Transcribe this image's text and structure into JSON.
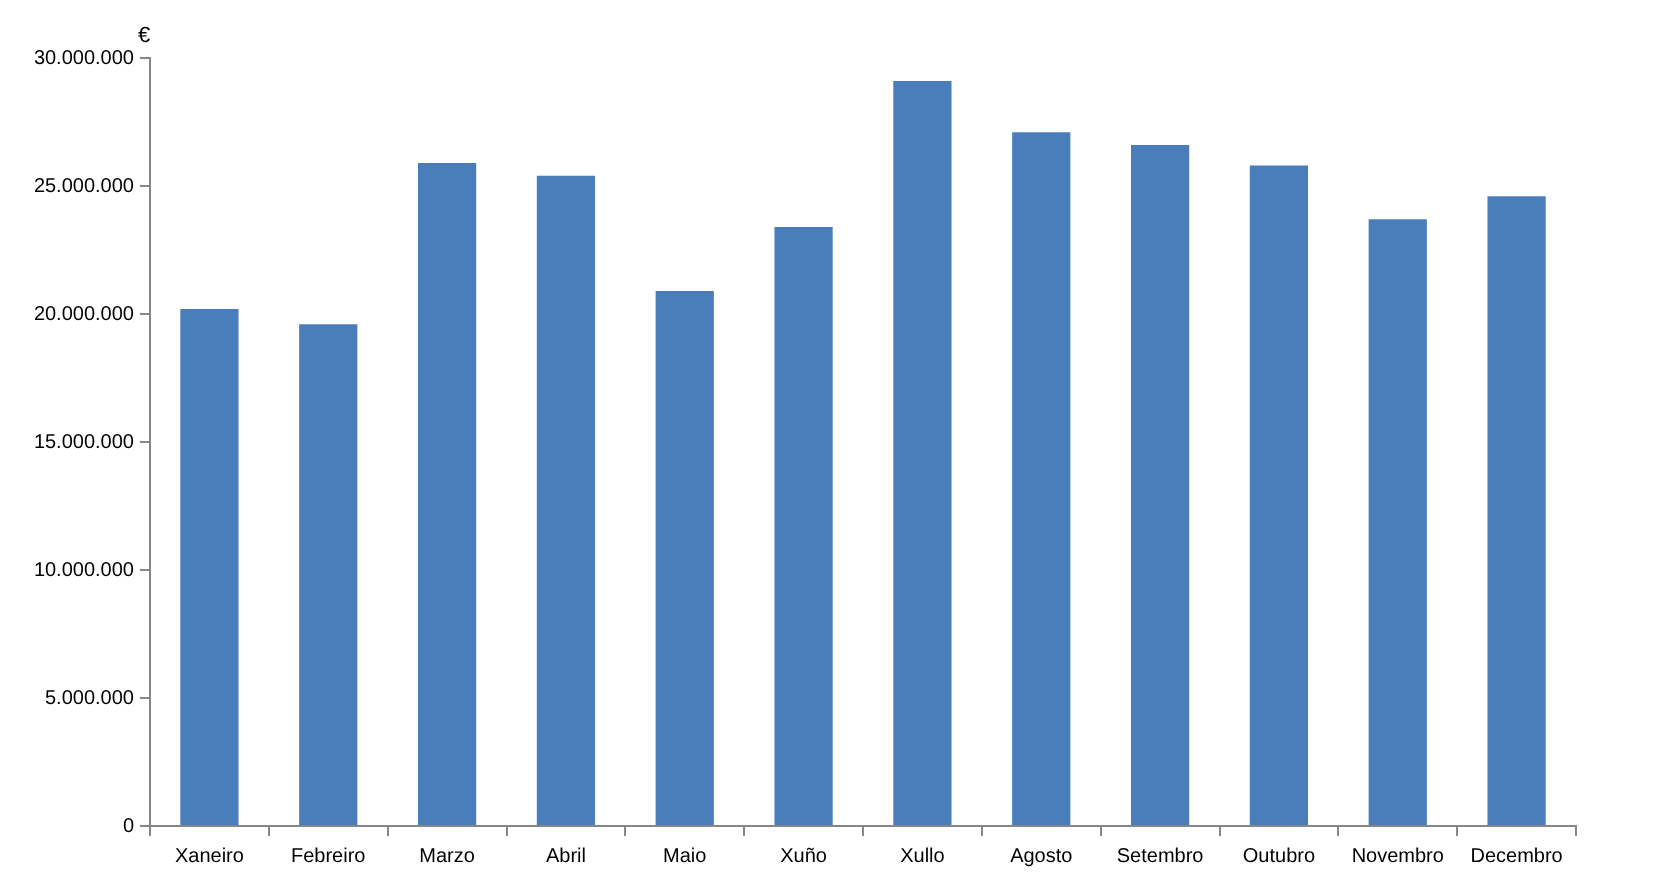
{
  "chart_data": {
    "type": "bar",
    "ylabel": "€",
    "categories": [
      "Xaneiro",
      "Febreiro",
      "Marzo",
      "Abril",
      "Maio",
      "Xuño",
      "Xullo",
      "Agosto",
      "Setembro",
      "Outubro",
      "Novembro",
      "Decembro"
    ],
    "values": [
      20200000,
      19600000,
      25900000,
      25400000,
      20900000,
      23400000,
      29100000,
      27100000,
      26600000,
      25800000,
      23700000,
      24600000
    ],
    "color": "#4a7ebb",
    "ylim": [
      0,
      30000000
    ],
    "yticks": [
      {
        "value": 0,
        "label": "0"
      },
      {
        "value": 5000000,
        "label": "5.000.000"
      },
      {
        "value": 10000000,
        "label": "10.000.000"
      },
      {
        "value": 15000000,
        "label": "15.000.000"
      },
      {
        "value": 20000000,
        "label": "20.000.000"
      },
      {
        "value": 25000000,
        "label": "25.000.000"
      },
      {
        "value": 30000000,
        "label": "30.000.000"
      }
    ]
  }
}
